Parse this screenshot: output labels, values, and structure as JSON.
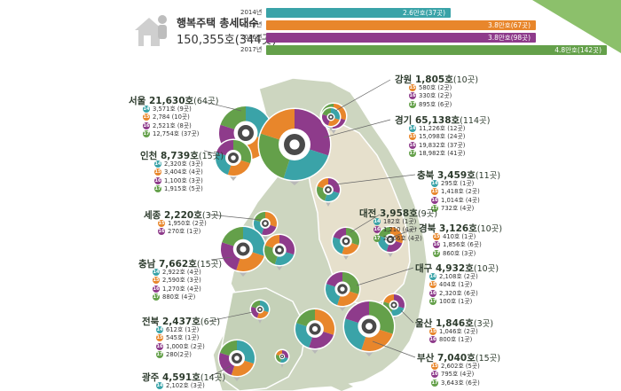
{
  "header": {
    "title": "행복주택 총세대수",
    "total": "150,355호(344곳)",
    "bars": [
      {
        "year": "2014년",
        "label": "2.6만호(37곳)",
        "value": 2.6,
        "color": "#3aa3a8"
      },
      {
        "year": "2015년",
        "label": "3.8만호(67곳)",
        "value": 3.8,
        "color": "#e8862b"
      },
      {
        "year": "2016년",
        "label": "3.8만호(98곳)",
        "value": 3.8,
        "color": "#8e3b8b"
      },
      {
        "year": "2017년",
        "label": "4.8만호(142곳)",
        "value": 4.8,
        "color": "#64a04a"
      }
    ]
  },
  "legend_years": [
    "14",
    "15",
    "16",
    "17"
  ],
  "colors": {
    "y14": "#3aa3a8",
    "y15": "#e8862b",
    "y16": "#8e3b8b",
    "y17": "#64a04a",
    "land": "#cdd6c0",
    "land_alt": "#e6e0cc",
    "sea": "#ffffff",
    "accent": "#6aa84f"
  },
  "regions": [
    {
      "id": "seoul",
      "name": "서울",
      "value": "21,630호",
      "count": "(64곳)",
      "rows": [
        [
          "14",
          "3,571호 (9곳)"
        ],
        [
          "15",
          "2,784 (10곳)"
        ],
        [
          "16",
          "2,521호 (8곳)"
        ],
        [
          "17",
          "12,754호 (37곳)"
        ]
      ]
    },
    {
      "id": "incheon",
      "name": "인천",
      "value": "8,739호",
      "count": "(15곳)",
      "rows": [
        [
          "14",
          "2,320호 (3곳)"
        ],
        [
          "15",
          "3,404호 (4곳)"
        ],
        [
          "16",
          "1,100호 (3곳)"
        ],
        [
          "17",
          "1,915호 (5곳)"
        ]
      ]
    },
    {
      "id": "sejong",
      "name": "세종",
      "value": "2,220호",
      "count": "(3곳)",
      "rows": [
        [
          "15",
          "1,950호 (2곳)"
        ],
        [
          "16",
          "270호 (1곳)"
        ]
      ]
    },
    {
      "id": "chungnam",
      "name": "충남",
      "value": "7,662호",
      "count": "(15곳)",
      "rows": [
        [
          "14",
          "2,922호 (4곳)"
        ],
        [
          "15",
          "2,590호 (3곳)"
        ],
        [
          "16",
          "1,270호 (4곳)"
        ],
        [
          "17",
          "880호 (4곳)"
        ]
      ]
    },
    {
      "id": "jeonbuk",
      "name": "전북",
      "value": "2,437호",
      "count": "(6곳)",
      "rows": [
        [
          "14",
          "612호 (1곳)"
        ],
        [
          "15",
          "545호 (1곳)"
        ],
        [
          "16",
          "1,000호 (2곳)"
        ],
        [
          "17",
          "280(2곳)"
        ]
      ]
    },
    {
      "id": "gwangju",
      "name": "광주",
      "value": "4,591호",
      "count": "(14곳)",
      "rows": [
        [
          "14",
          "2,102호 (3곳)"
        ]
      ]
    },
    {
      "id": "gangwon",
      "name": "강원",
      "value": "1,805호",
      "count": "(10곳)",
      "rows": [
        [
          "15",
          "580호 (2곳)"
        ],
        [
          "16",
          "330호 (2곳)"
        ],
        [
          "17",
          "895호 (6곳)"
        ]
      ]
    },
    {
      "id": "gyeonggi",
      "name": "경기",
      "value": "65,138호",
      "count": "(114곳)",
      "rows": [
        [
          "14",
          "11,226호 (12곳)"
        ],
        [
          "15",
          "15,098호 (24곳)"
        ],
        [
          "16",
          "19,832호 (37곳)"
        ],
        [
          "17",
          "18,982호 (41곳)"
        ]
      ]
    },
    {
      "id": "chungbuk",
      "name": "충북",
      "value": "3,459호",
      "count": "(11곳)",
      "rows": [
        [
          "14",
          "295호 (1곳)"
        ],
        [
          "15",
          "1,418호 (2곳)"
        ],
        [
          "16",
          "1,014호 (4곳)"
        ],
        [
          "17",
          "732호 (4곳)"
        ]
      ]
    },
    {
      "id": "daejeon",
      "name": "대전",
      "value": "3,958호",
      "count": "(9곳)",
      "rows": [
        [
          "14",
          "182호 (1곳)"
        ],
        [
          "16",
          "1,210 (4곳)"
        ],
        [
          "17",
          "2,566호 (4곳)"
        ]
      ]
    },
    {
      "id": "gyeongbuk",
      "name": "경북",
      "value": "3,126호",
      "count": "(10곳)",
      "rows": [
        [
          "15",
          "410호 (1곳)"
        ],
        [
          "16",
          "1,856호 (6곳)"
        ],
        [
          "17",
          "860호 (3곳)"
        ]
      ]
    },
    {
      "id": "daegu",
      "name": "대구",
      "value": "4,932호",
      "count": "(10곳)",
      "rows": [
        [
          "14",
          "2,108호 (2곳)"
        ],
        [
          "15",
          "404호 (1곳)"
        ],
        [
          "16",
          "2,320호 (6곳)"
        ],
        [
          "17",
          "100호 (1곳)"
        ]
      ]
    },
    {
      "id": "ulsan",
      "name": "울산",
      "value": "1,846호",
      "count": "(3곳)",
      "rows": [
        [
          "15",
          "1,046호 (2곳)"
        ],
        [
          "16",
          "800호 (1곳)"
        ]
      ]
    },
    {
      "id": "busan",
      "name": "부산",
      "value": "7,040호",
      "count": "(15곳)",
      "rows": [
        [
          "15",
          "2,602호 (5곳)"
        ],
        [
          "16",
          "795호 (4곳)"
        ],
        [
          "17",
          "3,643호 (6곳)"
        ]
      ]
    }
  ]
}
